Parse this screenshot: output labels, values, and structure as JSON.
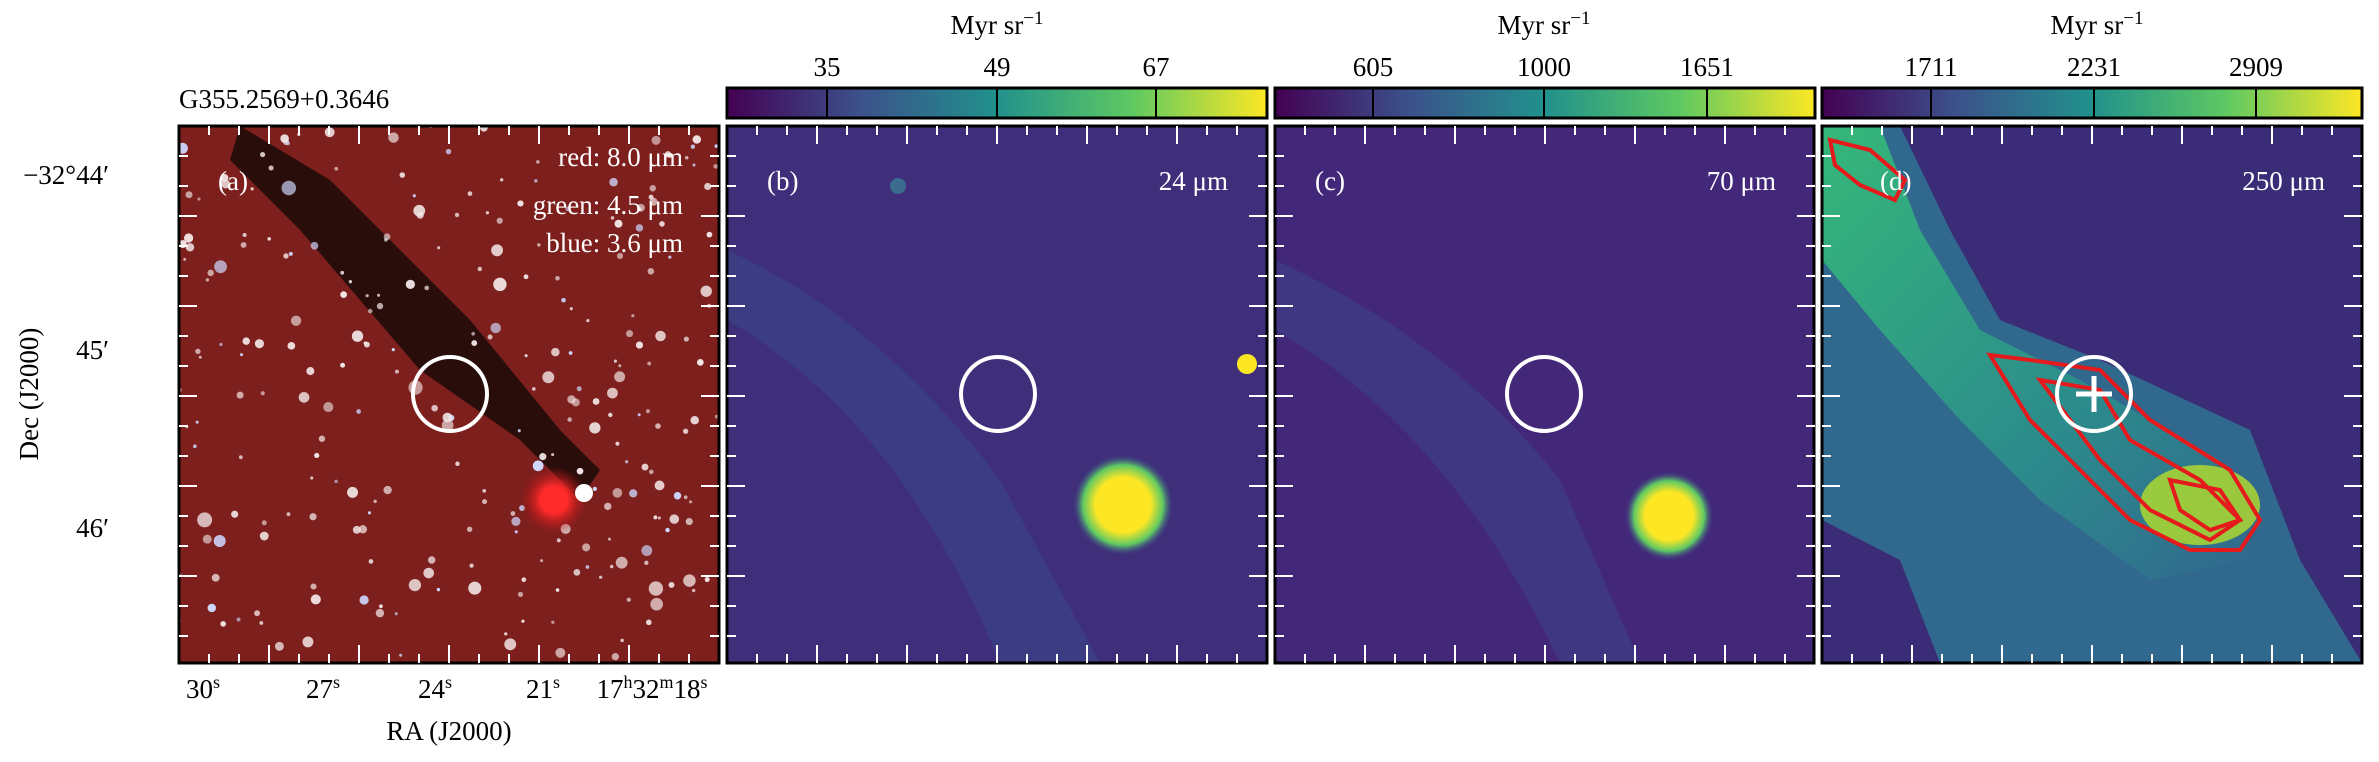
{
  "source_name": "G355.2569+0.3646",
  "axes": {
    "x_label": "RA (J2000)",
    "y_label": "Dec (J2000)",
    "ra_ticks": [
      [
        "30",
        "s"
      ],
      [
        "27",
        "s"
      ],
      [
        "24",
        "s"
      ],
      [
        "21",
        "s"
      ],
      [
        "17",
        "h",
        "32",
        "m",
        "18",
        "s"
      ]
    ],
    "dec_ticks": [
      "−32°44′",
      "45′",
      "46′"
    ]
  },
  "panels": [
    {
      "label": "(a)",
      "bands": [
        "red: 8.0 μm",
        "green: 4.5 μm",
        "blue: 3.6 μm"
      ]
    },
    {
      "label": "(b)",
      "wavelength": "24 μm",
      "colorbar": {
        "unit": "Myr sr",
        "exponent": "−1",
        "ticks": [
          35,
          49,
          67
        ]
      }
    },
    {
      "label": "(c)",
      "wavelength": "70 μm",
      "colorbar": {
        "unit": "Myr sr",
        "exponent": "−1",
        "ticks": [
          605,
          1000,
          1651
        ]
      }
    },
    {
      "label": "(d)",
      "wavelength": "250 μm",
      "colorbar": {
        "unit": "Myr sr",
        "exponent": "−1",
        "ticks": [
          1711,
          2231,
          2909
        ]
      }
    }
  ]
}
